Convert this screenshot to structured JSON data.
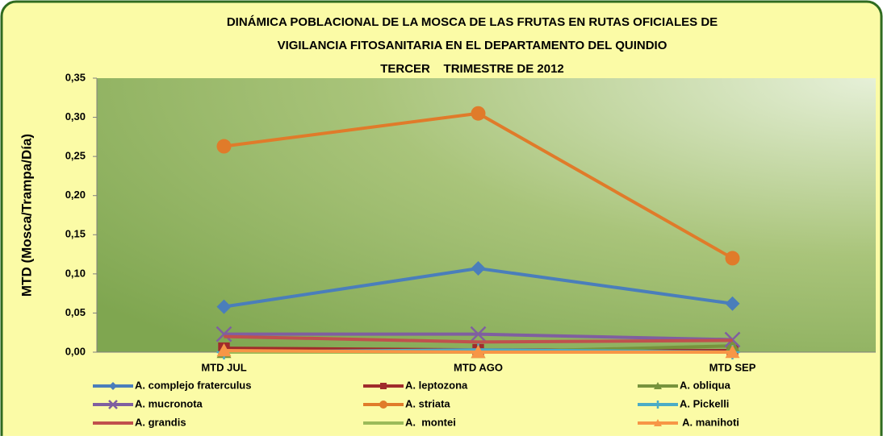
{
  "chart_data": {
    "type": "line",
    "title": [
      "DINÁMICA POBLACIONAL DE LA MOSCA DE LAS FRUTAS EN RUTAS OFICIALES DE",
      "VIGILANCIA FITOSANITARIA EN EL DEPARTAMENTO DEL QUINDIO",
      "TERCER    TRIMESTRE DE 2012"
    ],
    "y_label": "MTD (Mosca/Trampa/Día)",
    "categories": [
      "MTD JUL",
      "MTD AGO",
      "MTD SEP"
    ],
    "ylim": [
      0,
      0.35
    ],
    "yticks": [
      {
        "value": 0,
        "label": "0,00"
      },
      {
        "value": 0.05,
        "label": "0,05"
      },
      {
        "value": 0.1,
        "label": "0,10"
      },
      {
        "value": 0.15,
        "label": "0,15"
      },
      {
        "value": 0.2,
        "label": "0,20"
      },
      {
        "value": 0.25,
        "label": "0,25"
      },
      {
        "value": 0.3,
        "label": "0,30"
      },
      {
        "value": 0.35,
        "label": "0,35"
      }
    ],
    "series": [
      {
        "name": "A. complejo fraterculus",
        "color": "#4a7ebb",
        "marker": "diamond",
        "values": [
          0.058,
          0.107,
          0.062
        ]
      },
      {
        "name": "A. leptozona",
        "color": "#a02b2b",
        "marker": "square",
        "values": [
          0.005,
          0.003,
          0.002
        ]
      },
      {
        "name": "A. obliqua",
        "color": "#77933c",
        "marker": "triangle",
        "values": [
          0.0,
          0.0,
          0.008
        ]
      },
      {
        "name": "A. mucronota",
        "color": "#7f5fa0",
        "marker": "x",
        "values": [
          0.023,
          0.023,
          0.016
        ]
      },
      {
        "name": "A. striata",
        "color": "#e07b2a",
        "marker": "circle",
        "values": [
          0.263,
          0.305,
          0.12
        ]
      },
      {
        "name": "A. Pickelli",
        "color": "#4bacc6",
        "marker": "plus",
        "values": [
          0.0,
          0.003,
          0.0
        ]
      },
      {
        "name": "A. grandis",
        "color": "#c0504d",
        "marker": "none",
        "values": [
          0.02,
          0.013,
          0.015
        ]
      },
      {
        "name": "A.  montei",
        "color": "#9bbb59",
        "marker": "none",
        "values": [
          0.0,
          0.0,
          0.0
        ]
      },
      {
        "name": " A. manihoti",
        "color": "#f79646",
        "marker": "triangle",
        "values": [
          0.002,
          0.0,
          0.0
        ]
      }
    ]
  }
}
